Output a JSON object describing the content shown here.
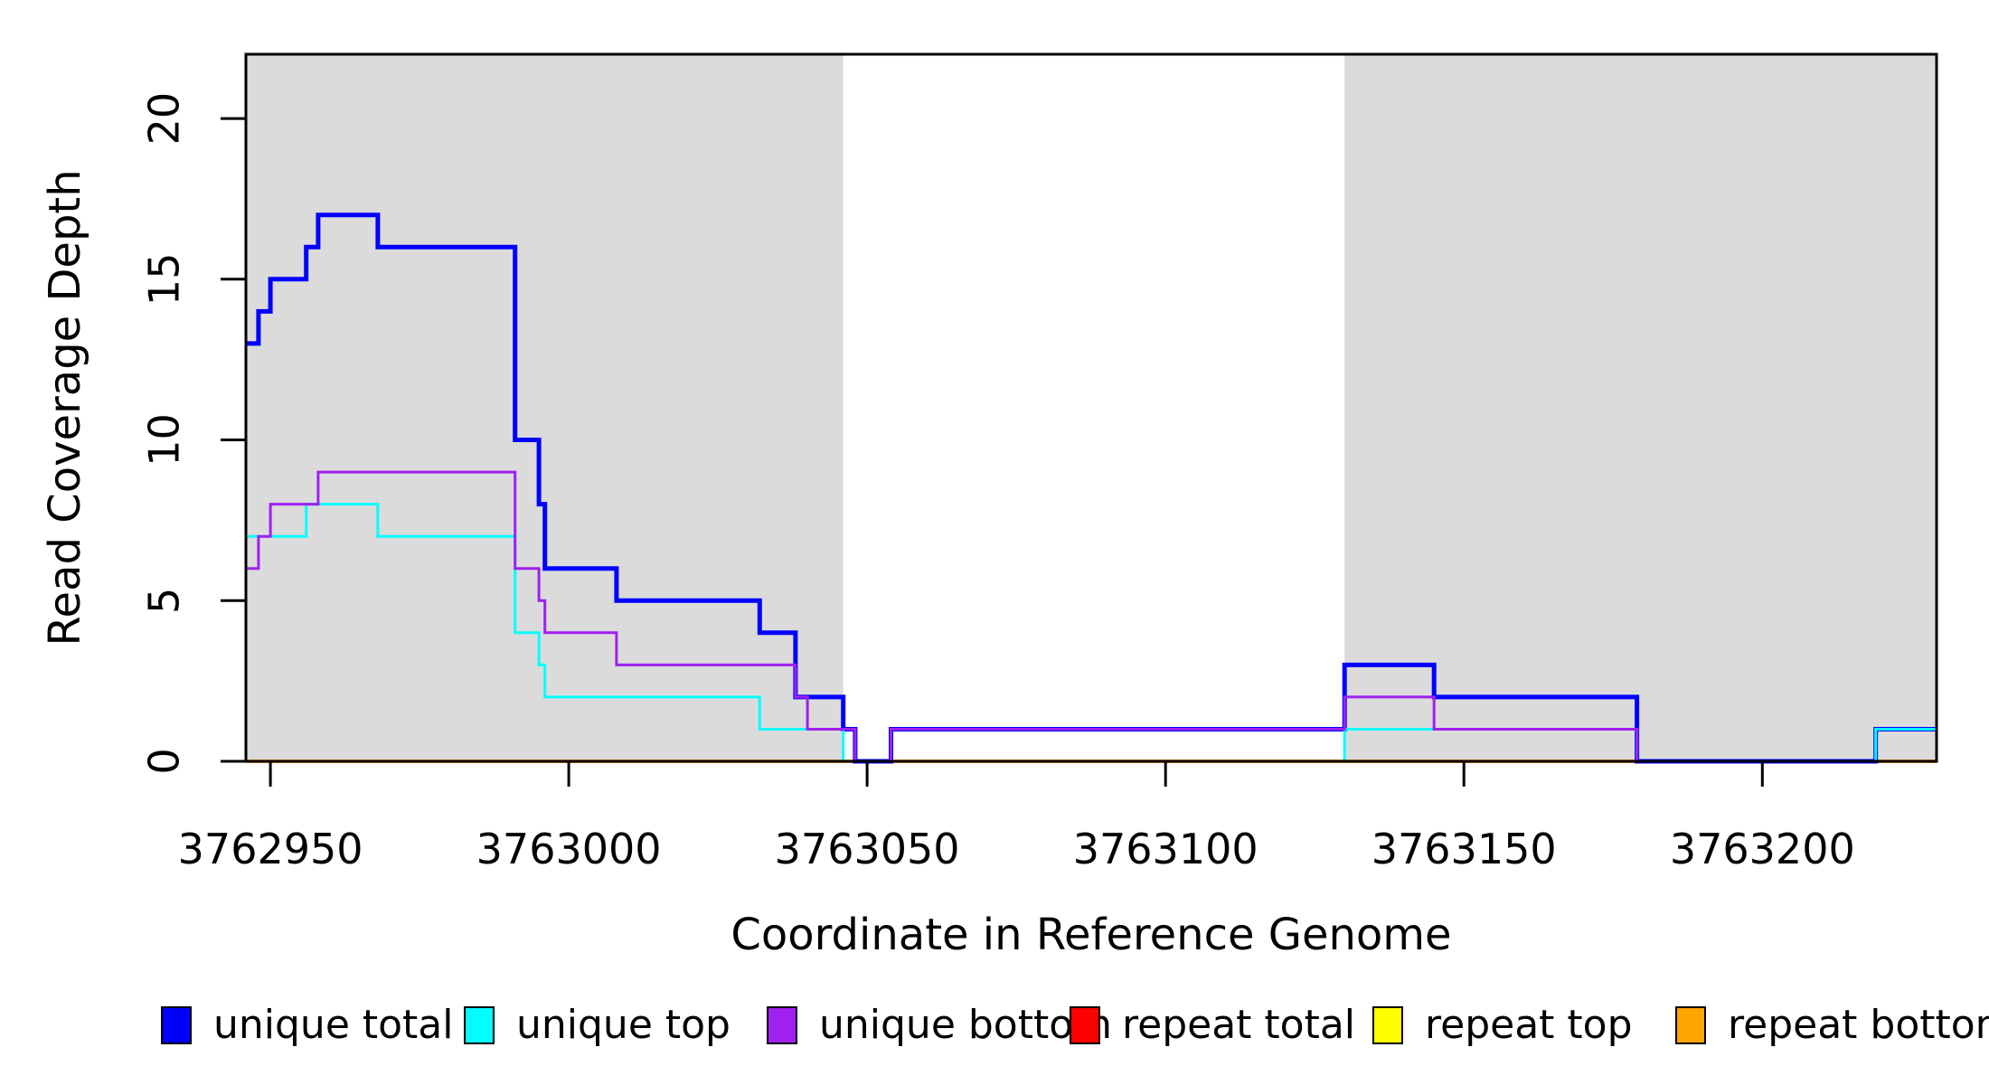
{
  "chart_data": {
    "type": "line",
    "subtype": "step-after",
    "title": "",
    "xlabel": "Coordinate in Reference Genome",
    "ylabel": "Read Coverage Depth",
    "xlim": [
      3762945.9,
      3763229.2
    ],
    "ylim": [
      0,
      22
    ],
    "x_ticks": [
      3762950,
      3763000,
      3763050,
      3763100,
      3763150,
      3763200
    ],
    "y_ticks": [
      0,
      5,
      10,
      15,
      20
    ],
    "grid": false,
    "legend_position": "bottom",
    "panel_background": "#ffffff",
    "shading_color": "#DBDBDB",
    "shaded_regions": [
      [
        3762945.9,
        3763046
      ],
      [
        3763130,
        3763229.2
      ]
    ],
    "draw_order": [
      "repeat total",
      "repeat top",
      "repeat bottom",
      "unique total",
      "unique top",
      "unique bottom"
    ],
    "series": [
      {
        "name": "unique total",
        "color": "#0000FF",
        "line_width": 5,
        "points": [
          [
            3762945.9,
            13
          ],
          [
            3762948,
            14
          ],
          [
            3762950,
            15
          ],
          [
            3762956,
            16
          ],
          [
            3762958,
            17
          ],
          [
            3762968,
            16
          ],
          [
            3762991,
            10
          ],
          [
            3762995,
            8
          ],
          [
            3762996,
            6
          ],
          [
            3763008,
            5
          ],
          [
            3763032,
            4
          ],
          [
            3763038,
            2
          ],
          [
            3763046,
            1
          ],
          [
            3763048,
            0
          ],
          [
            3763054,
            1
          ],
          [
            3763130,
            3
          ],
          [
            3763145,
            2
          ],
          [
            3763179,
            0
          ],
          [
            3763219,
            1
          ]
        ]
      },
      {
        "name": "unique top",
        "color": "#00FFFF",
        "line_width": 3,
        "points": [
          [
            3762945.9,
            7
          ],
          [
            3762956,
            8
          ],
          [
            3762968,
            7
          ],
          [
            3762991,
            4
          ],
          [
            3762995,
            3
          ],
          [
            3762996,
            2
          ],
          [
            3763032,
            1
          ],
          [
            3763046,
            0
          ],
          [
            3763130,
            1
          ],
          [
            3763179,
            0
          ],
          [
            3763219,
            1
          ]
        ]
      },
      {
        "name": "unique bottom",
        "color": "#A020F0",
        "line_width": 3,
        "points": [
          [
            3762945.9,
            6
          ],
          [
            3762948,
            7
          ],
          [
            3762950,
            8
          ],
          [
            3762958,
            9
          ],
          [
            3762991,
            6
          ],
          [
            3762995,
            5
          ],
          [
            3762996,
            4
          ],
          [
            3763008,
            3
          ],
          [
            3763038,
            2
          ],
          [
            3763040,
            1
          ],
          [
            3763048,
            0
          ],
          [
            3763054,
            1
          ],
          [
            3763130,
            2
          ],
          [
            3763145,
            1
          ],
          [
            3763179,
            0
          ]
        ]
      },
      {
        "name": "repeat total",
        "color": "#FF0000",
        "line_width": 3,
        "points": [
          [
            3762945.9,
            0
          ]
        ]
      },
      {
        "name": "repeat top",
        "color": "#FFFF00",
        "line_width": 3,
        "points": [
          [
            3762945.9,
            0
          ]
        ]
      },
      {
        "name": "repeat bottom",
        "color": "#FFA500",
        "line_width": 4,
        "points": [
          [
            3762945.9,
            0
          ]
        ]
      }
    ]
  },
  "legend": {
    "items": [
      {
        "label": "unique total",
        "color": "#0000FF"
      },
      {
        "label": "unique top",
        "color": "#00FFFF"
      },
      {
        "label": "unique bottom",
        "color": "#A020F0"
      },
      {
        "label": "repeat total",
        "color": "#FF0000"
      },
      {
        "label": "repeat top",
        "color": "#FFFF00"
      },
      {
        "label": "repeat bottom",
        "color": "#FFA500"
      }
    ]
  }
}
